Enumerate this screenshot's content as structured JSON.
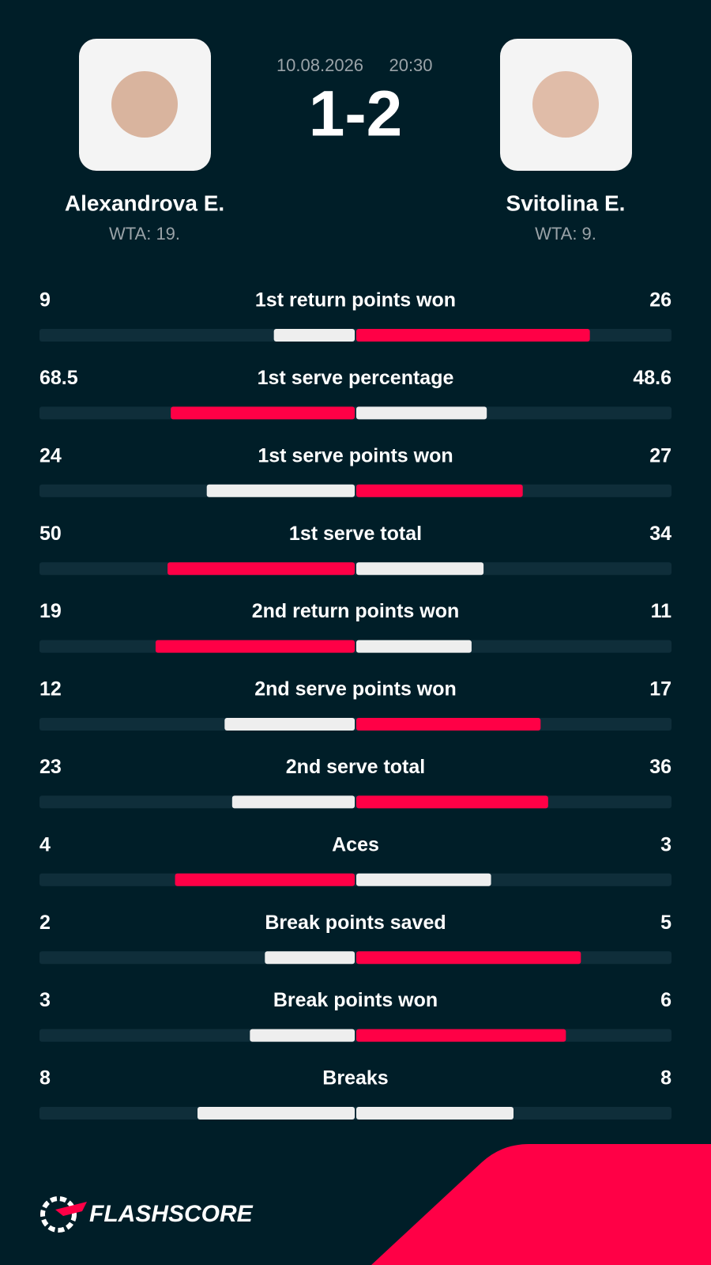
{
  "header": {
    "date": "10.08.2026",
    "time": "20:30",
    "score": "1-2",
    "player_left": {
      "name": "Alexandrova E.",
      "rank": "WTA: 19."
    },
    "player_right": {
      "name": "Svitolina E.",
      "rank": "WTA: 9."
    }
  },
  "stats": [
    {
      "label": "1st return points won",
      "left": 9,
      "right": 26
    },
    {
      "label": "1st serve percentage",
      "left": 68.5,
      "right": 48.6
    },
    {
      "label": "1st serve points won",
      "left": 24,
      "right": 27
    },
    {
      "label": "1st serve total",
      "left": 50,
      "right": 34
    },
    {
      "label": "2nd return points won",
      "left": 19,
      "right": 11
    },
    {
      "label": "2nd serve points won",
      "left": 12,
      "right": 17
    },
    {
      "label": "2nd serve total",
      "left": 23,
      "right": 36
    },
    {
      "label": "Aces",
      "left": 4,
      "right": 3
    },
    {
      "label": "Break points saved",
      "left": 2,
      "right": 5
    },
    {
      "label": "Break points won",
      "left": 3,
      "right": 6
    },
    {
      "label": "Breaks",
      "left": 8,
      "right": 8
    }
  ],
  "footer": {
    "brand": "FLASHSCORE"
  }
}
